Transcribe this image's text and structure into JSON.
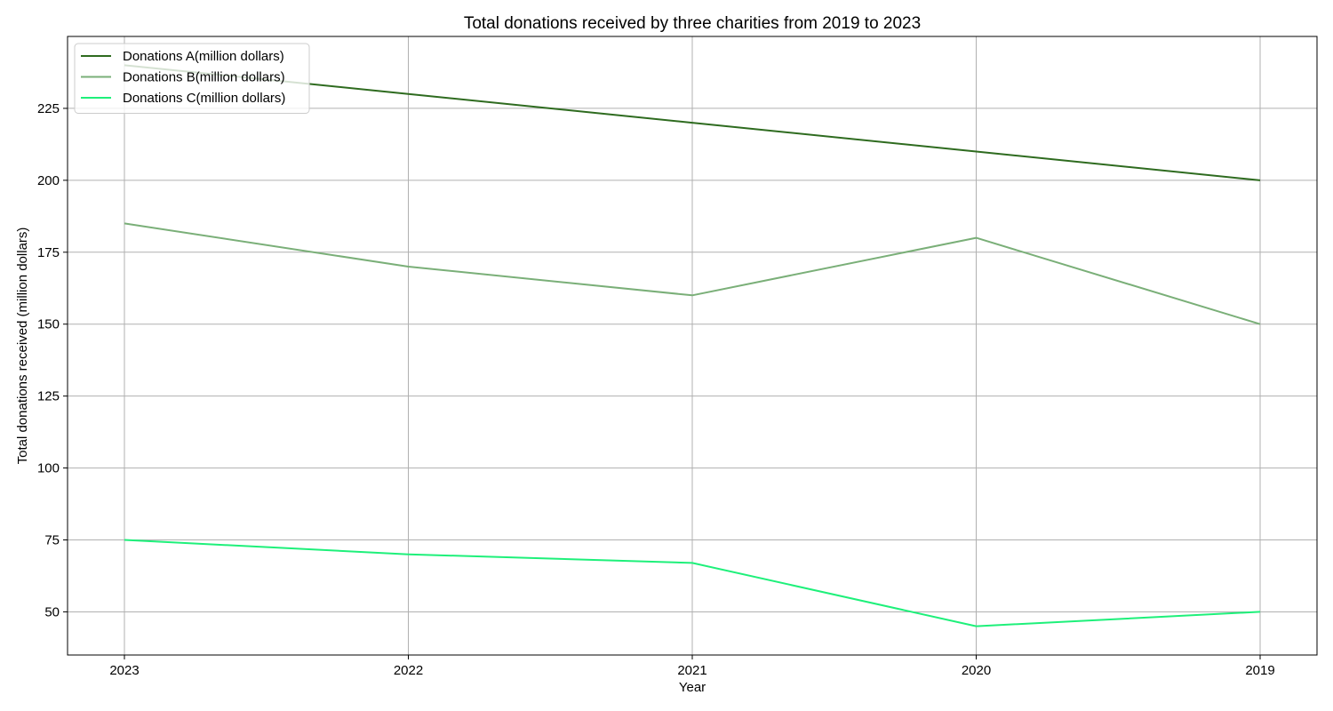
{
  "chart_data": {
    "type": "line",
    "title": "Total donations received by three charities from 2019 to 2023",
    "xlabel": "Year",
    "ylabel": "Total donations received (million dollars)",
    "categories": [
      "2023",
      "2022",
      "2021",
      "2020",
      "2019"
    ],
    "ylim": [
      35,
      250
    ],
    "yticks": [
      50,
      75,
      100,
      125,
      150,
      175,
      200,
      225
    ],
    "grid": true,
    "legend_position": "top-left",
    "series": [
      {
        "name": "Donations A(million dollars)",
        "color": "#2e6b1f",
        "values": [
          240,
          230,
          220,
          210,
          200
        ]
      },
      {
        "name": "Donations B(million dollars)",
        "color": "#7aaf78",
        "values": [
          185,
          170,
          160,
          180,
          150
        ]
      },
      {
        "name": "Donations C(million dollars)",
        "color": "#1ef07a",
        "values": [
          75,
          70,
          67,
          45,
          50
        ]
      }
    ]
  }
}
